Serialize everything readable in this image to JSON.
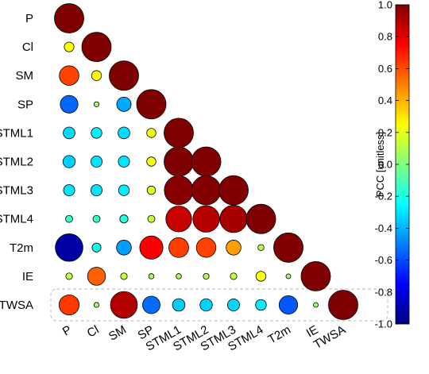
{
  "chart_data": {
    "type": "heatmap",
    "variables": [
      "P",
      "Cl",
      "SM",
      "SP",
      "STML1",
      "STML2",
      "STML3",
      "STML4",
      "T2m",
      "IE",
      "TWSA"
    ],
    "highlighted_row": "TWSA",
    "matrix": [
      [
        1.0
      ],
      [
        0.24,
        1.0
      ],
      [
        0.62,
        0.25,
        1.0
      ],
      [
        -0.55,
        0.06,
        -0.42,
        1.0
      ],
      [
        -0.32,
        -0.28,
        -0.32,
        0.22,
        1.0
      ],
      [
        -0.34,
        -0.3,
        -0.3,
        0.22,
        1.0,
        1.0
      ],
      [
        -0.3,
        -0.3,
        -0.28,
        0.19,
        0.98,
        0.99,
        1.0
      ],
      [
        -0.14,
        -0.14,
        -0.18,
        0.14,
        0.86,
        0.89,
        0.92,
        1.0
      ],
      [
        -0.93,
        -0.21,
        -0.44,
        0.76,
        0.63,
        0.62,
        0.44,
        0.1,
        1.0
      ],
      [
        0.12,
        0.56,
        0.12,
        0.07,
        0.07,
        0.09,
        0.12,
        0.25,
        0.05,
        1.0
      ],
      [
        0.64,
        0.06,
        0.9,
        -0.54,
        -0.35,
        -0.34,
        -0.33,
        -0.28,
        -0.58,
        0.05,
        1.0
      ]
    ],
    "colorbar": {
      "label": "PCC [unitless]",
      "min": -1.0,
      "max": 1.0,
      "ticks": [
        "1.0",
        "0.8",
        "0.6",
        "0.4",
        "0.2",
        "0.0",
        "-0.2",
        "-0.4",
        "-0.6",
        "-0.8",
        "-1.0"
      ],
      "colormap": [
        "#00007f",
        "#0000ff",
        "#007fff",
        "#00ffff",
        "#7fff7f",
        "#ffff00",
        "#ff7f00",
        "#ff0000",
        "#7f0000"
      ]
    }
  }
}
